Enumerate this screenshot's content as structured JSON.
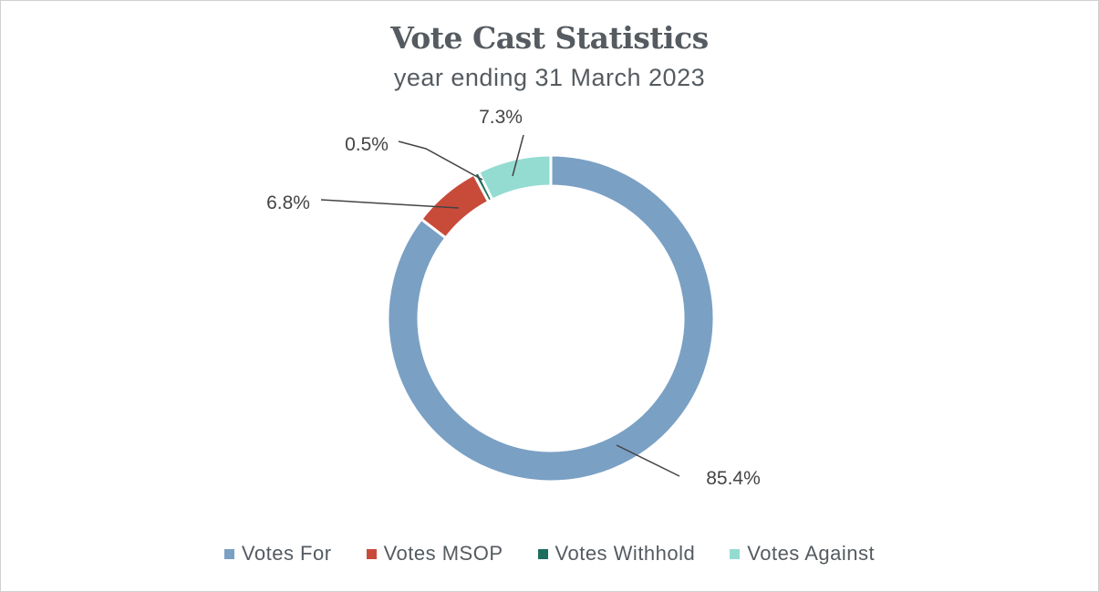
{
  "chart_data": {
    "type": "pie",
    "variant": "donut",
    "title": "Vote Cast Statistics",
    "subtitle": "year ending 31 March 2023",
    "legend_position": "bottom",
    "slices": [
      {
        "label": "Votes For",
        "value": 85.4,
        "data_label": "85.4%",
        "color": "#7aa0c4"
      },
      {
        "label": "Votes MSOP",
        "value": 6.8,
        "data_label": "6.8%",
        "color": "#c84b3a"
      },
      {
        "label": "Votes Withhold",
        "value": 0.5,
        "data_label": "0.5%",
        "color": "#1e6e5e"
      },
      {
        "label": "Votes Against",
        "value": 7.3,
        "data_label": "7.3%",
        "color": "#94dcd2"
      }
    ]
  }
}
